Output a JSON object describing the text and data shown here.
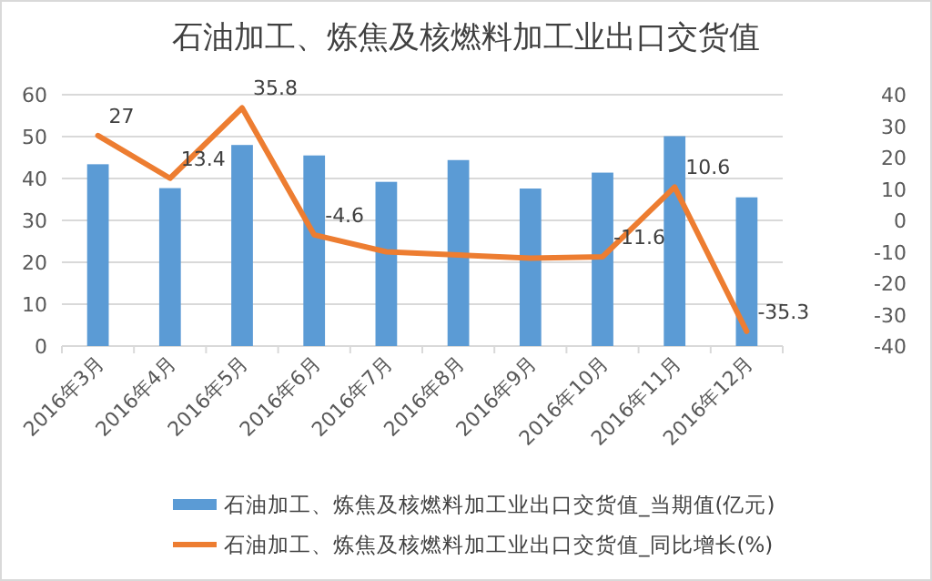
{
  "chart_data": {
    "type": "bar",
    "title": "石油加工、炼焦及核燃料加工业出口交货值",
    "categories": [
      "2016年3月",
      "2016年4月",
      "2016年5月",
      "2016年6月",
      "2016年7月",
      "2016年8月",
      "2016年9月",
      "2016年10月",
      "2016年11月",
      "2016年12月"
    ],
    "series": [
      {
        "name": "石油加工、炼焦及核燃料加工业出口交货值_当期值(亿元)",
        "color": "#5b9bd5",
        "values": [
          43.4,
          37.7,
          48.0,
          45.5,
          39.2,
          44.4,
          37.6,
          41.4,
          50.1,
          35.5
        ]
      },
      {
        "name": "石油加工、炼焦及核燃料加工业出口交货值_同比增长(%)",
        "type": "line",
        "axis": "y2",
        "color": "#ed7d31",
        "values": [
          27,
          13.4,
          35.8,
          -4.6,
          -10,
          -11,
          -12,
          -11.6,
          10.6,
          -35.3
        ],
        "value_labels": [
          "27",
          "13.4",
          "35.8",
          "-4.6",
          null,
          null,
          null,
          "-11.6",
          "10.6",
          "-35.3"
        ]
      }
    ],
    "ylim": [
      0,
      60
    ],
    "yticks": [
      0,
      10,
      20,
      30,
      40,
      50,
      60
    ],
    "y2lim": [
      -40,
      40
    ],
    "y2ticks": [
      -40,
      -30,
      -20,
      -10,
      0,
      10,
      20,
      30,
      40
    ],
    "grid": "y",
    "legend": "bottom"
  }
}
